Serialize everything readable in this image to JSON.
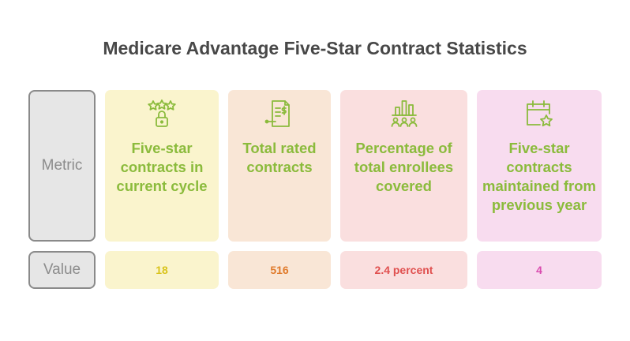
{
  "title": "Medicare Advantage Five-Star Contract Statistics",
  "row_labels": {
    "metric": "Metric",
    "value": "Value"
  },
  "columns": [
    {
      "metric": "Five-star contracts in current cycle",
      "value": "18",
      "icon": "stars-lock-icon",
      "bg": "#faf4cd",
      "value_color": "#d9c31a"
    },
    {
      "metric": "Total rated contracts",
      "value": "516",
      "icon": "document-dollar-icon",
      "bg": "#f9e6d6",
      "value_color": "#e07a2b"
    },
    {
      "metric": "Percentage of total enrollees covered",
      "value": "2.4 percent",
      "icon": "bar-chart-people-icon",
      "bg": "#fadfdf",
      "value_color": "#e0504f"
    },
    {
      "metric": "Five-star contracts maintained from previous year",
      "value": "4",
      "icon": "calendar-star-icon",
      "bg": "#f8dcef",
      "value_color": "#d94aae"
    }
  ],
  "colors": {
    "label_green": "#8bbb3c",
    "icon_green": "#8bbb3c"
  }
}
